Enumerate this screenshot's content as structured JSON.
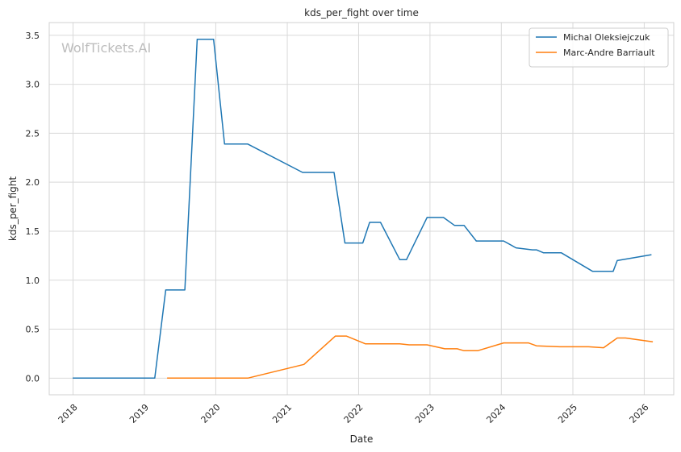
{
  "chart_data": {
    "type": "line",
    "title": "kds_per_fight over time",
    "xlabel": "Date",
    "ylabel": "kds_per_fight",
    "watermark": "WolfTickets.AI",
    "xlim": [
      "2017-09-01",
      "2026-06-01"
    ],
    "ylim": [
      -0.17,
      3.63
    ],
    "x_ticks": [
      "2018",
      "2019",
      "2020",
      "2021",
      "2022",
      "2023",
      "2024",
      "2025",
      "2026"
    ],
    "y_ticks": [
      "0.0",
      "0.5",
      "1.0",
      "1.5",
      "2.0",
      "2.5",
      "3.0",
      "3.5"
    ],
    "grid": true,
    "legend_position": "top-right",
    "series": [
      {
        "name": "Michal Oleksiejczuk",
        "color": "#1f77b4",
        "points": [
          [
            "2017-12-30",
            0.0
          ],
          [
            "2019-02-23",
            0.0
          ],
          [
            "2019-04-20",
            0.9
          ],
          [
            "2019-07-27",
            0.9
          ],
          [
            "2019-09-28",
            3.46
          ],
          [
            "2019-12-21",
            3.46
          ],
          [
            "2020-02-15",
            2.39
          ],
          [
            "2020-06-13",
            2.39
          ],
          [
            "2021-03-20",
            2.1
          ],
          [
            "2021-08-28",
            2.1
          ],
          [
            "2021-10-23",
            1.38
          ],
          [
            "2022-01-22",
            1.38
          ],
          [
            "2022-02-26",
            1.59
          ],
          [
            "2022-04-23",
            1.59
          ],
          [
            "2022-07-30",
            1.21
          ],
          [
            "2022-09-03",
            1.21
          ],
          [
            "2022-12-17",
            1.64
          ],
          [
            "2023-03-11",
            1.64
          ],
          [
            "2023-05-06",
            1.56
          ],
          [
            "2023-06-24",
            1.56
          ],
          [
            "2023-08-26",
            1.4
          ],
          [
            "2024-01-13",
            1.4
          ],
          [
            "2024-03-16",
            1.33
          ],
          [
            "2024-06-08",
            1.31
          ],
          [
            "2024-06-29",
            1.31
          ],
          [
            "2024-08-03",
            1.28
          ],
          [
            "2024-11-02",
            1.28
          ],
          [
            "2025-04-12",
            1.09
          ],
          [
            "2025-07-26",
            1.09
          ],
          [
            "2025-08-16",
            1.2
          ],
          [
            "2026-02-07",
            1.26
          ]
        ]
      },
      {
        "name": "Marc-Andre Barriault",
        "color": "#ff7f0e",
        "points": [
          [
            "2019-04-27",
            0.0
          ],
          [
            "2020-06-13",
            0.0
          ],
          [
            "2021-03-27",
            0.14
          ],
          [
            "2021-09-04",
            0.43
          ],
          [
            "2021-10-30",
            0.43
          ],
          [
            "2022-02-05",
            0.35
          ],
          [
            "2022-05-14",
            0.35
          ],
          [
            "2022-07-30",
            0.35
          ],
          [
            "2022-09-17",
            0.34
          ],
          [
            "2022-12-17",
            0.34
          ],
          [
            "2023-03-18",
            0.3
          ],
          [
            "2023-05-20",
            0.3
          ],
          [
            "2023-06-24",
            0.28
          ],
          [
            "2023-09-02",
            0.28
          ],
          [
            "2024-01-13",
            0.36
          ],
          [
            "2024-05-18",
            0.36
          ],
          [
            "2024-06-29",
            0.33
          ],
          [
            "2024-10-26",
            0.32
          ],
          [
            "2025-03-22",
            0.32
          ],
          [
            "2025-06-07",
            0.31
          ],
          [
            "2025-08-16",
            0.41
          ],
          [
            "2025-09-27",
            0.41
          ],
          [
            "2026-02-14",
            0.37
          ]
        ]
      }
    ]
  }
}
